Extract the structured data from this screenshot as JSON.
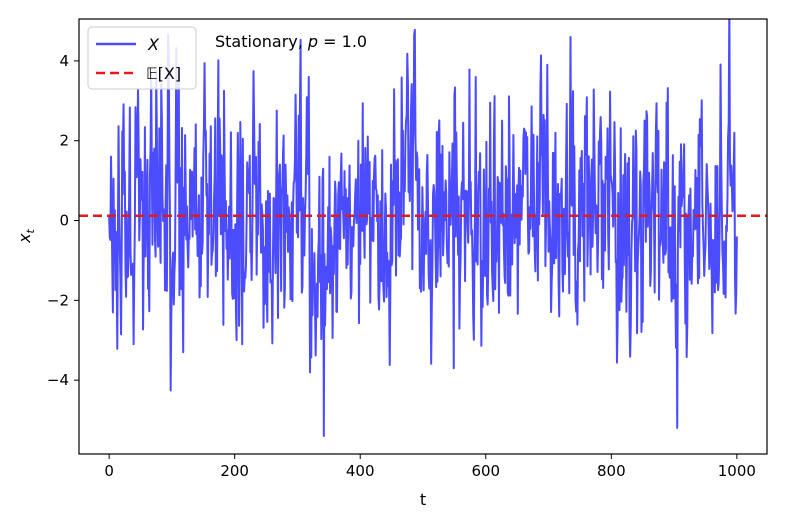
{
  "chart_data": {
    "type": "line",
    "title": "Stationary, p = 1.0",
    "title_prefix": "Stationary, ",
    "title_var": "p",
    "title_eq": " = 1.0",
    "xlabel": "t",
    "ylabel": "x",
    "ylabel_sub": "t",
    "xlim": [
      -48,
      1048
    ],
    "ylim": [
      -5.85,
      5.05
    ],
    "xticks": [
      0,
      200,
      400,
      600,
      800,
      1000
    ],
    "xtick_labels": [
      "0",
      "200",
      "400",
      "600",
      "800",
      "1000"
    ],
    "yticks": [
      -4,
      -2,
      0,
      2,
      4
    ],
    "ytick_labels": [
      "−4",
      "−2",
      "0",
      "2",
      "4"
    ],
    "grid": false,
    "legend_placement": "upper-left",
    "series": [
      {
        "name": "X",
        "color": "#4b4bff",
        "style": "solid",
        "n_points": 1001,
        "x_range": [
          0,
          1000
        ],
        "keypoints": [
          {
            "x": 0,
            "y": 0.1
          },
          {
            "x": 3,
            "y": 1.6
          },
          {
            "x": 6,
            "y": -2.3
          },
          {
            "x": 67,
            "y": 3.7
          },
          {
            "x": 212,
            "y": -3.1
          },
          {
            "x": 318,
            "y": 3.6
          },
          {
            "x": 342,
            "y": -5.4
          },
          {
            "x": 549,
            "y": -3.7
          },
          {
            "x": 735,
            "y": 4.6
          },
          {
            "x": 1000,
            "y": -0.4
          }
        ]
      },
      {
        "name": "𝔼[X]",
        "color": "#e31a1c",
        "style": "dashed",
        "y": 0.12
      }
    ]
  }
}
